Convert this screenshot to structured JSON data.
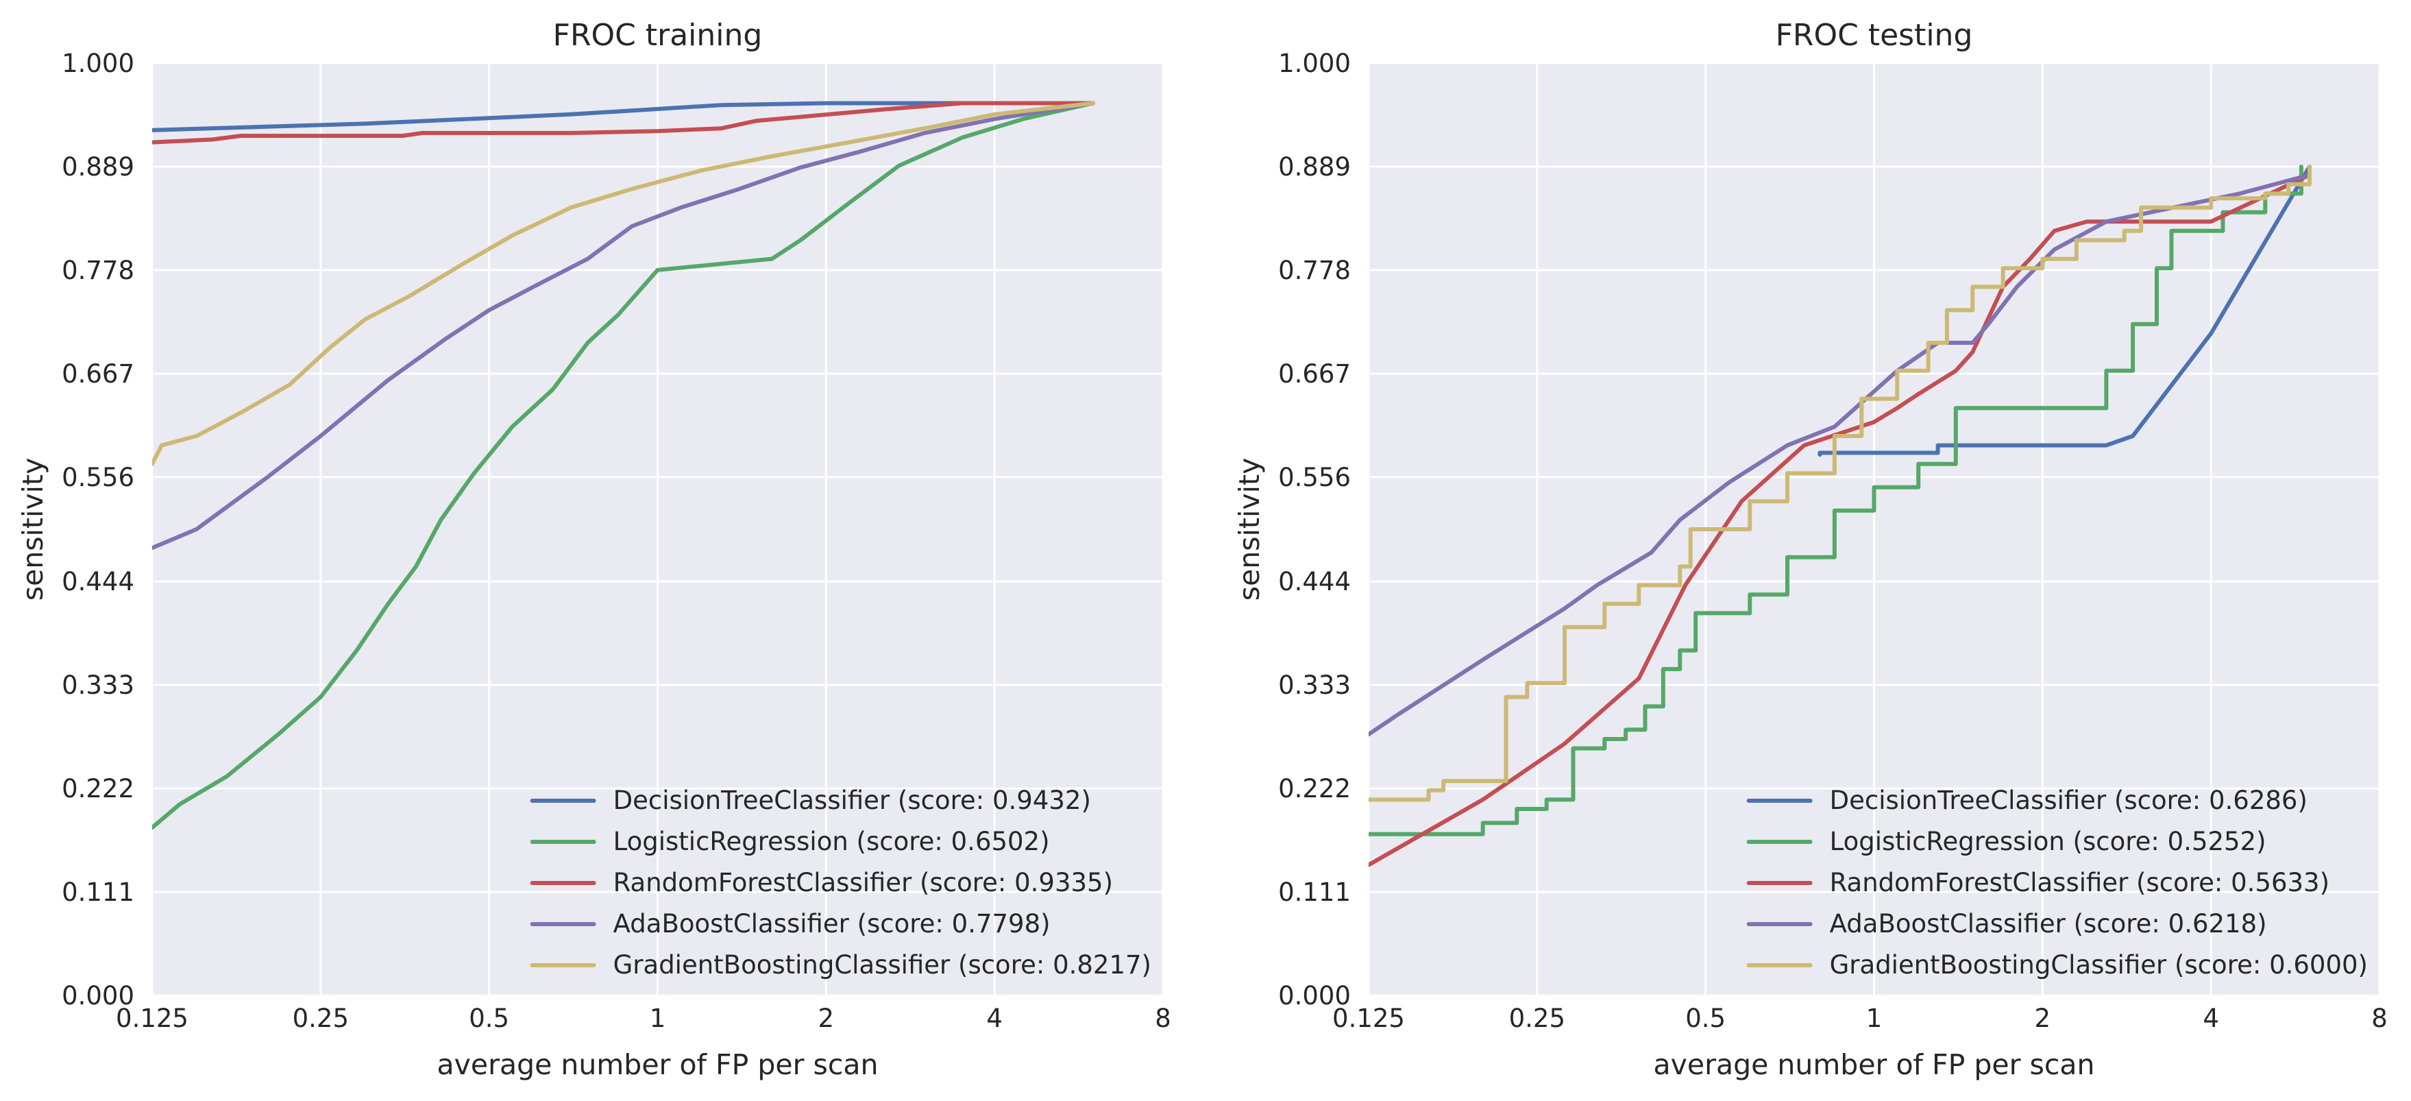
{
  "figure": {
    "panels": [
      {
        "title": "FROC training"
      },
      {
        "title": "FROC testing"
      }
    ]
  },
  "colors": {
    "background": "#EAEAF2",
    "grid": "#FFFFFF",
    "series": [
      "#4C72B0",
      "#55A868",
      "#C44E52",
      "#8172B2",
      "#CCB974"
    ]
  },
  "chart_data": [
    {
      "type": "line",
      "title": "FROC training",
      "xlabel": "average number of FP per scan",
      "ylabel": "sensitivity",
      "xscale": "log2",
      "xlim": [
        0.125,
        8
      ],
      "ylim": [
        0,
        1
      ],
      "xticks": [
        0.125,
        0.25,
        0.5,
        1,
        2,
        4,
        8
      ],
      "xtick_labels": [
        "0.125",
        "0.25",
        "0.5",
        "1",
        "2",
        "4",
        "8"
      ],
      "yticks": [
        0,
        0.111,
        0.222,
        0.333,
        0.444,
        0.556,
        0.667,
        0.778,
        0.889,
        1
      ],
      "ytick_labels": [
        "0.000",
        "0.111",
        "0.222",
        "0.333",
        "0.444",
        "0.556",
        "0.667",
        "0.778",
        "0.889",
        "1.000"
      ],
      "grid": true,
      "legend_position": "lower-right",
      "series": [
        {
          "name": "DecisionTreeClassifier (score: 0.9432)",
          "color": "#4C72B0",
          "step": false,
          "points": [
            [
              0.125,
              0.928
            ],
            [
              0.3,
              0.935
            ],
            [
              0.7,
              0.945
            ],
            [
              1.3,
              0.955
            ],
            [
              2,
              0.957
            ],
            [
              6,
              0.957
            ]
          ]
        },
        {
          "name": "LogisticRegression (score: 0.6502)",
          "color": "#55A868",
          "step": false,
          "points": [
            [
              0.125,
              0.18
            ],
            [
              0.14,
              0.205
            ],
            [
              0.17,
              0.235
            ],
            [
              0.21,
              0.28
            ],
            [
              0.25,
              0.32
            ],
            [
              0.29,
              0.37
            ],
            [
              0.33,
              0.42
            ],
            [
              0.37,
              0.46
            ],
            [
              0.41,
              0.51
            ],
            [
              0.47,
              0.56
            ],
            [
              0.55,
              0.61
            ],
            [
              0.65,
              0.65
            ],
            [
              0.75,
              0.7
            ],
            [
              0.85,
              0.73
            ],
            [
              1.0,
              0.778
            ],
            [
              1.6,
              0.79
            ],
            [
              1.8,
              0.81
            ],
            [
              2.2,
              0.85
            ],
            [
              2.7,
              0.89
            ],
            [
              3.5,
              0.92
            ],
            [
              4.5,
              0.94
            ],
            [
              6,
              0.957
            ]
          ]
        },
        {
          "name": "RandomForestClassifier (score: 0.9335)",
          "color": "#C44E52",
          "step": false,
          "points": [
            [
              0.125,
              0.915
            ],
            [
              0.16,
              0.918
            ],
            [
              0.18,
              0.922
            ],
            [
              0.35,
              0.922
            ],
            [
              0.38,
              0.925
            ],
            [
              0.7,
              0.925
            ],
            [
              1.0,
              0.927
            ],
            [
              1.3,
              0.93
            ],
            [
              1.5,
              0.938
            ],
            [
              2.5,
              0.95
            ],
            [
              3.5,
              0.957
            ],
            [
              6,
              0.957
            ]
          ]
        },
        {
          "name": "AdaBoostClassifier (score: 0.7798)",
          "color": "#8172B2",
          "step": false,
          "points": [
            [
              0.125,
              0.48
            ],
            [
              0.15,
              0.5
            ],
            [
              0.2,
              0.555
            ],
            [
              0.25,
              0.6
            ],
            [
              0.33,
              0.66
            ],
            [
              0.42,
              0.705
            ],
            [
              0.5,
              0.735
            ],
            [
              0.6,
              0.76
            ],
            [
              0.75,
              0.79
            ],
            [
              0.9,
              0.825
            ],
            [
              1.1,
              0.845
            ],
            [
              1.4,
              0.865
            ],
            [
              1.8,
              0.888
            ],
            [
              2.3,
              0.905
            ],
            [
              3,
              0.925
            ],
            [
              4,
              0.94
            ],
            [
              6,
              0.957
            ]
          ]
        },
        {
          "name": "GradientBoostingClassifier (score: 0.8217)",
          "color": "#CCB974",
          "step": false,
          "points": [
            [
              0.125,
              0.57
            ],
            [
              0.13,
              0.59
            ],
            [
              0.15,
              0.6
            ],
            [
              0.18,
              0.625
            ],
            [
              0.22,
              0.655
            ],
            [
              0.26,
              0.695
            ],
            [
              0.3,
              0.725
            ],
            [
              0.36,
              0.75
            ],
            [
              0.45,
              0.785
            ],
            [
              0.55,
              0.815
            ],
            [
              0.7,
              0.845
            ],
            [
              0.9,
              0.865
            ],
            [
              1.2,
              0.885
            ],
            [
              1.6,
              0.9
            ],
            [
              2.2,
              0.915
            ],
            [
              3,
              0.93
            ],
            [
              4,
              0.945
            ],
            [
              6,
              0.957
            ]
          ]
        }
      ]
    },
    {
      "type": "line",
      "title": "FROC testing",
      "xlabel": "average number of FP per scan",
      "ylabel": "sensitivity",
      "xscale": "log2",
      "xlim": [
        0.125,
        8
      ],
      "ylim": [
        0,
        1
      ],
      "xticks": [
        0.125,
        0.25,
        0.5,
        1,
        2,
        4,
        8
      ],
      "xtick_labels": [
        "0.125",
        "0.25",
        "0.5",
        "1",
        "2",
        "4",
        "8"
      ],
      "yticks": [
        0,
        0.111,
        0.222,
        0.333,
        0.444,
        0.556,
        0.667,
        0.778,
        0.889,
        1
      ],
      "ytick_labels": [
        "0.000",
        "0.111",
        "0.222",
        "0.333",
        "0.444",
        "0.556",
        "0.667",
        "0.778",
        "0.889",
        "1.000"
      ],
      "grid": true,
      "legend_position": "lower-right",
      "series": [
        {
          "name": "DecisionTreeClassifier (score: 0.6286)",
          "color": "#4C72B0",
          "step": false,
          "points": [
            [
              0.8,
              0.58
            ],
            [
              0.8,
              0.582
            ],
            [
              1.3,
              0.582
            ],
            [
              1.3,
              0.59
            ],
            [
              2.6,
              0.59
            ],
            [
              2.9,
              0.6
            ],
            [
              4,
              0.71
            ],
            [
              6,
              0.889
            ]
          ]
        },
        {
          "name": "LogisticRegression (score: 0.5252)",
          "color": "#55A868",
          "step": true,
          "points": [
            [
              0.125,
              0.173
            ],
            [
              0.2,
              0.185
            ],
            [
              0.23,
              0.2
            ],
            [
              0.26,
              0.21
            ],
            [
              0.29,
              0.265
            ],
            [
              0.33,
              0.275
            ],
            [
              0.36,
              0.285
            ],
            [
              0.39,
              0.31
            ],
            [
              0.42,
              0.35
            ],
            [
              0.45,
              0.37
            ],
            [
              0.48,
              0.41
            ],
            [
              0.6,
              0.43
            ],
            [
              0.7,
              0.47
            ],
            [
              0.85,
              0.52
            ],
            [
              1.0,
              0.545
            ],
            [
              1.2,
              0.57
            ],
            [
              1.4,
              0.63
            ],
            [
              1.8,
              0.63
            ],
            [
              2.4,
              0.63
            ],
            [
              2.6,
              0.67
            ],
            [
              2.9,
              0.72
            ],
            [
              3.2,
              0.78
            ],
            [
              3.4,
              0.82
            ],
            [
              4.2,
              0.84
            ],
            [
              5,
              0.86
            ],
            [
              5.8,
              0.889
            ]
          ]
        },
        {
          "name": "RandomForestClassifier (score: 0.5633)",
          "color": "#C44E52",
          "step": false,
          "points": [
            [
              0.125,
              0.14
            ],
            [
              0.2,
              0.21
            ],
            [
              0.28,
              0.27
            ],
            [
              0.38,
              0.34
            ],
            [
              0.46,
              0.44
            ],
            [
              0.58,
              0.53
            ],
            [
              0.75,
              0.59
            ],
            [
              1.0,
              0.615
            ],
            [
              1.1,
              0.63
            ],
            [
              1.2,
              0.645
            ],
            [
              1.4,
              0.67
            ],
            [
              1.5,
              0.69
            ],
            [
              1.7,
              0.76
            ],
            [
              1.9,
              0.79
            ],
            [
              2.1,
              0.82
            ],
            [
              2.4,
              0.83
            ],
            [
              4,
              0.83
            ],
            [
              6,
              0.88
            ]
          ]
        },
        {
          "name": "AdaBoostClassifier (score: 0.6218)",
          "color": "#8172B2",
          "step": false,
          "points": [
            [
              0.125,
              0.28
            ],
            [
              0.14,
              0.3
            ],
            [
              0.2,
              0.36
            ],
            [
              0.28,
              0.415
            ],
            [
              0.32,
              0.44
            ],
            [
              0.4,
              0.475
            ],
            [
              0.45,
              0.51
            ],
            [
              0.55,
              0.55
            ],
            [
              0.7,
              0.59
            ],
            [
              0.85,
              0.61
            ],
            [
              1.1,
              0.67
            ],
            [
              1.3,
              0.7
            ],
            [
              1.5,
              0.7
            ],
            [
              1.6,
              0.72
            ],
            [
              1.8,
              0.76
            ],
            [
              2.1,
              0.8
            ],
            [
              2.6,
              0.83
            ],
            [
              4.5,
              0.86
            ],
            [
              6,
              0.88
            ]
          ]
        },
        {
          "name": "GradientBoostingClassifier (score: 0.6000)",
          "color": "#CCB974",
          "step": true,
          "points": [
            [
              0.125,
              0.21
            ],
            [
              0.16,
              0.22
            ],
            [
              0.17,
              0.23
            ],
            [
              0.21,
              0.23
            ],
            [
              0.22,
              0.32
            ],
            [
              0.24,
              0.335
            ],
            [
              0.27,
              0.335
            ],
            [
              0.28,
              0.395
            ],
            [
              0.33,
              0.42
            ],
            [
              0.38,
              0.44
            ],
            [
              0.45,
              0.46
            ],
            [
              0.47,
              0.5
            ],
            [
              0.6,
              0.53
            ],
            [
              0.7,
              0.56
            ],
            [
              0.85,
              0.6
            ],
            [
              0.95,
              0.64
            ],
            [
              1.1,
              0.67
            ],
            [
              1.25,
              0.7
            ],
            [
              1.35,
              0.735
            ],
            [
              1.5,
              0.76
            ],
            [
              1.7,
              0.78
            ],
            [
              2.0,
              0.79
            ],
            [
              2.3,
              0.81
            ],
            [
              2.8,
              0.82
            ],
            [
              3.0,
              0.845
            ],
            [
              4,
              0.855
            ],
            [
              5,
              0.86
            ],
            [
              5.5,
              0.87
            ],
            [
              6,
              0.889
            ]
          ]
        }
      ]
    }
  ]
}
